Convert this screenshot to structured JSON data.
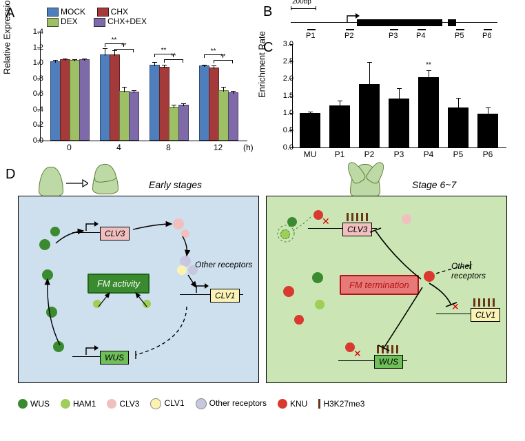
{
  "panelA": {
    "type": "bar",
    "ylabel": "Relative Expression",
    "ylim": [
      0,
      1.4
    ],
    "ytick_step": 0.2,
    "x_categories": [
      "0",
      "4",
      "8",
      "12"
    ],
    "x_unit": "(h)",
    "series": [
      {
        "name": "MOCK",
        "color": "#4f7ebd"
      },
      {
        "name": "CHX",
        "color": "#a43a3a"
      },
      {
        "name": "DEX",
        "color": "#9ec065"
      },
      {
        "name": "CHX+DEX",
        "color": "#7e6aa8"
      }
    ],
    "values": {
      "0": {
        "MOCK": 1.0,
        "CHX": 1.03,
        "DEX": 1.02,
        "CHX+DEX": 1.03
      },
      "4": {
        "MOCK": 1.09,
        "CHX": 1.09,
        "DEX": 0.62,
        "CHX+DEX": 0.61
      },
      "8": {
        "MOCK": 0.96,
        "CHX": 0.93,
        "DEX": 0.42,
        "CHX+DEX": 0.44
      },
      "12": {
        "MOCK": 0.95,
        "CHX": 0.92,
        "DEX": 0.63,
        "CHX+DEX": 0.6
      }
    },
    "errors": {
      "0": {
        "MOCK": 0.03,
        "CHX": 0.02,
        "DEX": 0.02,
        "CHX+DEX": 0.02
      },
      "4": {
        "MOCK": 0.09,
        "CHX": 0.06,
        "DEX": 0.06,
        "CHX+DEX": 0.03
      },
      "8": {
        "MOCK": 0.04,
        "CHX": 0.04,
        "DEX": 0.03,
        "CHX+DEX": 0.03
      },
      "12": {
        "MOCK": 0.02,
        "CHX": 0.04,
        "DEX": 0.05,
        "CHX+DEX": 0.03
      }
    },
    "significance_mark": "**"
  },
  "panelB": {
    "scale_label": "200bp",
    "regions": [
      "P1",
      "P2",
      "P3",
      "P4",
      "P5",
      "P6"
    ]
  },
  "panelC": {
    "type": "bar",
    "ylabel": "Enrichment Rate",
    "ylim": [
      0,
      3.0
    ],
    "ytick_step": 0.5,
    "bar_color": "#000000",
    "categories": [
      "MU",
      "P1",
      "P2",
      "P3",
      "P4",
      "P5",
      "P6"
    ],
    "values": [
      1.0,
      1.22,
      1.85,
      1.42,
      2.05,
      1.17,
      0.98
    ],
    "errors": [
      0.03,
      0.12,
      0.62,
      0.28,
      0.18,
      0.25,
      0.17
    ],
    "significance": {
      "P4": "**"
    }
  },
  "panelD": {
    "stage_left_label": "Early stages",
    "stage_right_label": "Stage 6~7",
    "badge_left": {
      "text": "FM activity",
      "bg": "#3a8a30",
      "fg": "#ffffff",
      "border": "#216619"
    },
    "badge_right": {
      "text": "FM termination",
      "bg": "#e77a78",
      "fg": "#b21414",
      "border": "#b21414"
    },
    "genes": {
      "CLV3": {
        "bg": "#f2bfbf"
      },
      "CLV1": {
        "bg": "#fbf2b6"
      },
      "WUS": {
        "bg": "#6fbf5a"
      }
    },
    "other_receptors_label": "Other receptors"
  },
  "legend_bottom": [
    {
      "label": "WUS",
      "type": "dot",
      "color": "#3a8a30"
    },
    {
      "label": "HAM1",
      "type": "dot",
      "color": "#9fce59"
    },
    {
      "label": "CLV3",
      "type": "dot",
      "color": "#f2bfbf"
    },
    {
      "label": "CLV1",
      "type": "dot",
      "color": "#fdf3b1"
    },
    {
      "label": "Other receptors",
      "type": "dot",
      "color": "#c7c7e0"
    },
    {
      "label": "KNU",
      "type": "dot",
      "color": "#d83a2f"
    },
    {
      "label": "H3K27me3",
      "type": "bar",
      "color": "#6b3414"
    }
  ],
  "palette": {
    "card_left_bg": "#cedfee",
    "card_right_bg": "#cbe6b4",
    "flower": "#bdd9a5",
    "flower_edge": "#5e7e37"
  }
}
